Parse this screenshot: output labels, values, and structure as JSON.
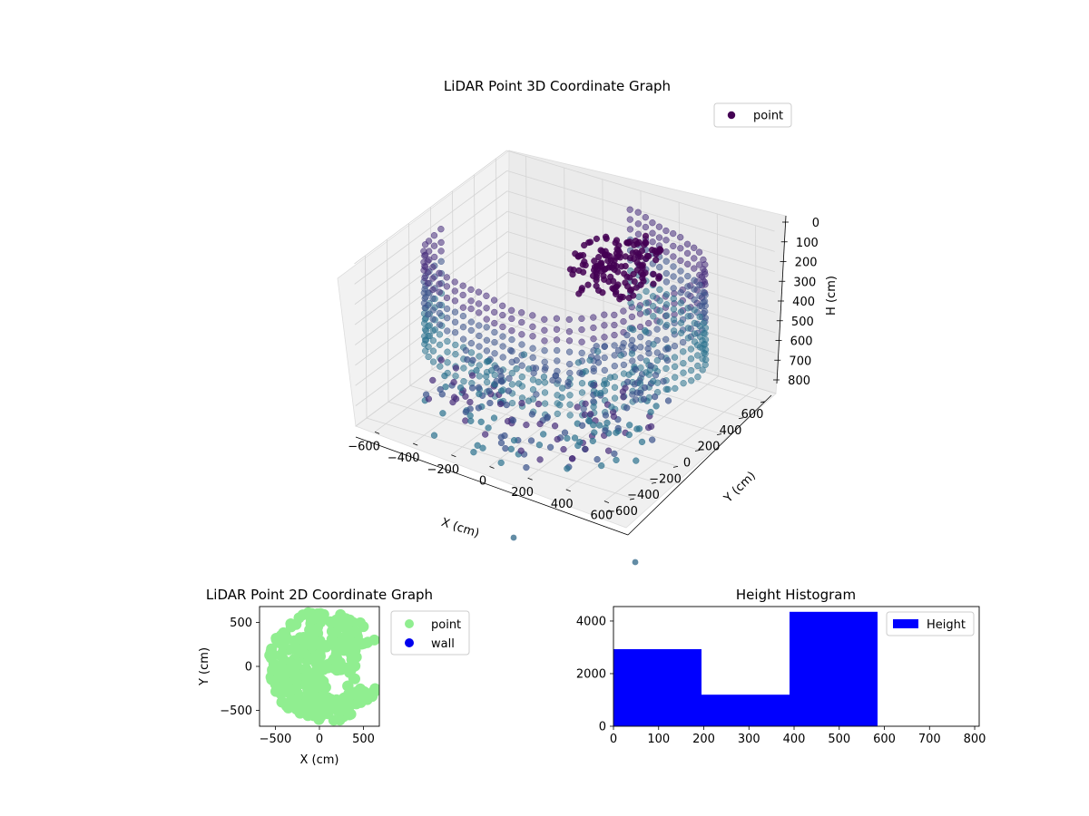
{
  "chart_data": [
    {
      "type": "scatter",
      "projection": "3d",
      "title": "LiDAR Point 3D Coordinate Graph",
      "xlabel": "X (cm)",
      "ylabel": "Y (cm)",
      "zlabel": "H (cm)",
      "xticks": [
        "−600",
        "−400",
        "−200",
        "0",
        "200",
        "400",
        "600"
      ],
      "yticks": [
        "−600",
        "−400",
        "−200",
        "0",
        "200",
        "400",
        "600"
      ],
      "zticks": [
        "0",
        "100",
        "200",
        "300",
        "400",
        "500",
        "600",
        "700",
        "800"
      ],
      "xlim": [
        -700,
        700
      ],
      "ylim": [
        -700,
        700
      ],
      "zlim": [
        0,
        800
      ],
      "z_inverted": true,
      "grid": true,
      "legend": {
        "position": "top-right",
        "entries": [
          {
            "label": "point",
            "color": "#440154"
          }
        ]
      },
      "colormap": "viridis",
      "series": [
        {
          "name": "point"
        }
      ]
    },
    {
      "type": "scatter",
      "title": "LiDAR Point 2D Coordinate Graph",
      "xlabel": "X (cm)",
      "ylabel": "Y (cm)",
      "xticks": [
        "−500",
        "0",
        "500"
      ],
      "yticks": [
        "500",
        "0",
        "−500"
      ],
      "xlim": [
        -680,
        680
      ],
      "ylim": [
        -680,
        680
      ],
      "legend": {
        "position": "outside-right",
        "entries": [
          {
            "label": "point",
            "color": "#90ee90"
          },
          {
            "label": "wall",
            "color": "#0000ee"
          }
        ]
      },
      "series": [
        {
          "name": "point",
          "color": "#90ee90"
        },
        {
          "name": "wall",
          "color": "#0000ee"
        }
      ]
    },
    {
      "type": "bar",
      "histogram": true,
      "title": "Height Histogram",
      "xticks": [
        "0",
        "100",
        "200",
        "300",
        "400",
        "500",
        "600",
        "700",
        "800"
      ],
      "yticks": [
        "0",
        "2000",
        "4000"
      ],
      "xlim": [
        0,
        810
      ],
      "ylim": [
        0,
        4550
      ],
      "color": "#0000ff",
      "legend": {
        "position": "top-right",
        "entries": [
          {
            "label": "Height",
            "color": "#0000ff"
          }
        ]
      },
      "bins": [
        {
          "start": 0,
          "end": 195,
          "count": 2930
        },
        {
          "start": 195,
          "end": 390,
          "count": 1200
        },
        {
          "start": 390,
          "end": 585,
          "count": 4350
        }
      ]
    }
  ]
}
